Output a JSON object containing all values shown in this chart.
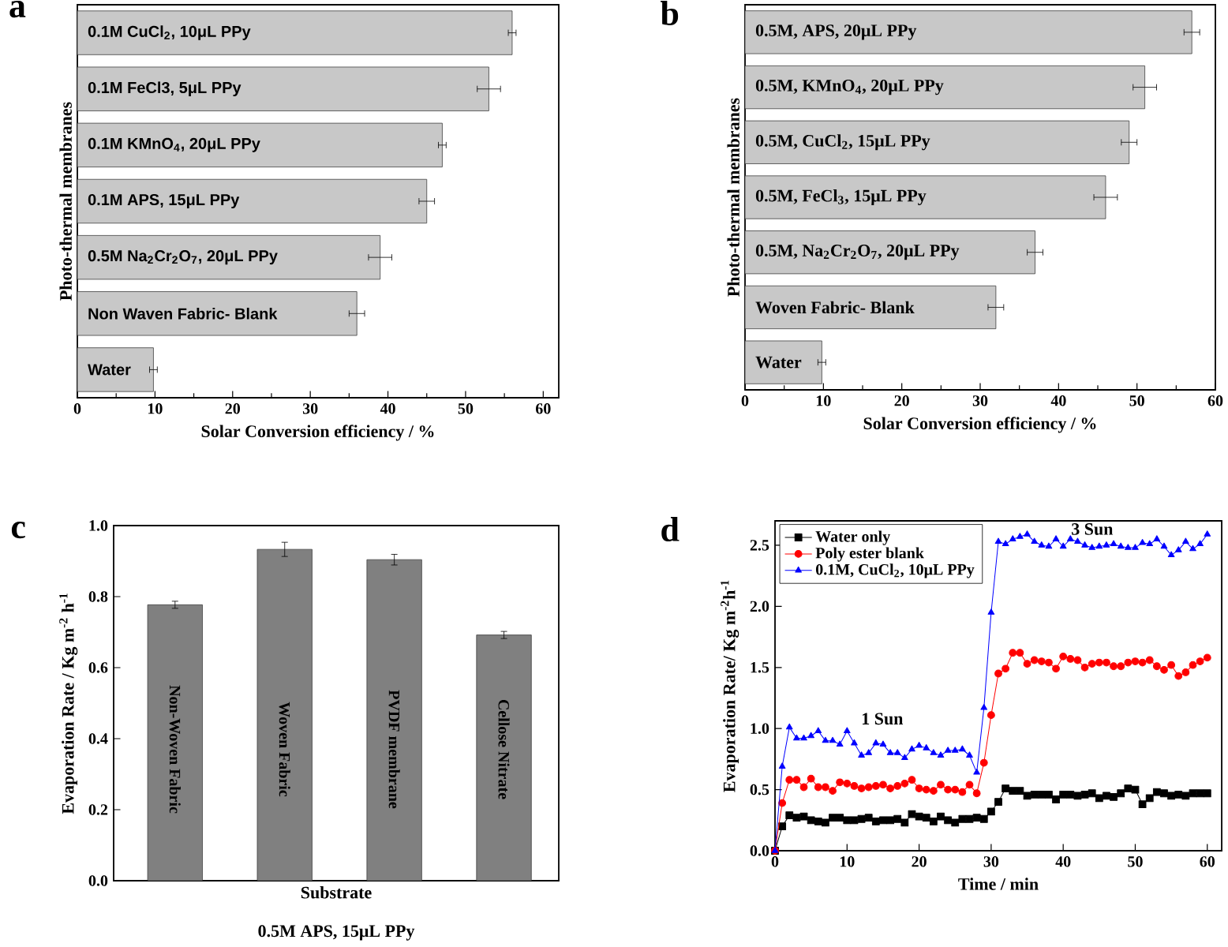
{
  "chart_data": [
    {
      "type": "bar",
      "orientation": "horizontal",
      "title": "a",
      "xlabel": "Solar Conversion efficiency / %",
      "ylabel": "Photo-thermal membranes",
      "categories": [
        "0.1M CuCl$_{2}$, 10μL PPy",
        "0.1M FeCl3, 5μL PPy",
        "0.1M KMnO$_{4}$, 20μL PPy",
        "0.1M APS, 15μL PPy",
        "0.5M Na$_{2}$Cr$_{2}$O$_{7}$, 20μL PPy",
        "Non Waven Fabric- Blank",
        "Water"
      ],
      "values": [
        56,
        53,
        47,
        45,
        39,
        36,
        9.8
      ],
      "errors": [
        0.5,
        1.5,
        0.5,
        1,
        1.5,
        1,
        0.5
      ],
      "color": "#c8c8c8",
      "xlim": [
        0,
        62
      ],
      "xticks": [
        0,
        10,
        20,
        30,
        40,
        50,
        60
      ]
    },
    {
      "type": "bar",
      "orientation": "horizontal",
      "title": "b",
      "xlabel": "Solar Conversion efficiency / %",
      "ylabel": "Photo-thermal membranes",
      "categories": [
        "0.5M, APS, 20μL PPy",
        "0.5M, KMnO$_{4}$, 20μL PPy",
        "0.5M, CuCl$_{2}$, 15μL PPy",
        "0.5M, FeCl$_{3}$, 15μL PPy",
        "0.5M, Na$_{2}$Cr$_{2}$O$_{7}$, 20μL PPy",
        "Woven Fabric- Blank",
        "Water"
      ],
      "values": [
        57,
        51,
        49,
        46,
        37,
        32,
        9.8
      ],
      "errors": [
        1,
        1.5,
        1,
        1.5,
        1,
        1,
        0.5
      ],
      "color": "#c8c8c8",
      "xlim": [
        0,
        60
      ],
      "xticks": [
        0,
        10,
        20,
        30,
        40,
        50,
        60
      ]
    },
    {
      "type": "bar",
      "title": "c",
      "xlabel": "Substrate",
      "ylabel": "Evaporation Rate / Kg m$^{-2}$ h$^{-1}$",
      "annotations": [
        "0.5M APS, 15μL PPy"
      ],
      "categories": [
        "Non-Woven Fabric",
        "Woven Fabric",
        "PVDF membrane",
        "Cellose Nitrate"
      ],
      "values": [
        0.777,
        0.933,
        0.904,
        0.692
      ],
      "errors": [
        0.01,
        0.02,
        0.015,
        0.01
      ],
      "color": "#808080",
      "ylim": [
        0,
        1.0
      ],
      "yticks": [
        {
          "value": 0,
          "label": "0.0"
        },
        0.2,
        0.4,
        0.6,
        0.8,
        {
          "value": 1,
          "label": "1.0"
        }
      ]
    },
    {
      "type": "line",
      "title": "d",
      "xlabel": "Time / min",
      "ylabel": "Evaporation Rate/ Kg m$^{-2}$h$^{-1}$",
      "legend": "top left",
      "annotations": [
        "1 Sun",
        "3 Sun"
      ],
      "x": [
        0,
        1,
        2,
        3,
        4,
        5,
        6,
        7,
        8,
        9,
        10,
        11,
        12,
        13,
        14,
        15,
        16,
        17,
        18,
        19,
        20,
        21,
        22,
        23,
        24,
        25,
        26,
        27,
        28,
        29,
        30,
        31,
        32,
        33,
        34,
        35,
        36,
        37,
        38,
        39,
        40,
        41,
        42,
        43,
        44,
        45,
        46,
        47,
        48,
        49,
        50,
        51,
        52,
        53,
        54,
        55,
        56,
        57,
        58,
        59,
        60
      ],
      "series": [
        {
          "name": "Water only",
          "color": "#000000",
          "marker": "square",
          "values": [
            0,
            0.2,
            0.29,
            0.27,
            0.28,
            0.25,
            0.24,
            0.23,
            0.27,
            0.27,
            0.25,
            0.25,
            0.26,
            0.27,
            0.24,
            0.25,
            0.25,
            0.26,
            0.23,
            0.3,
            0.28,
            0.27,
            0.24,
            0.28,
            0.25,
            0.23,
            0.26,
            0.26,
            0.27,
            0.26,
            0.32,
            0.4,
            0.51,
            0.49,
            0.49,
            0.45,
            0.46,
            0.46,
            0.46,
            0.42,
            0.46,
            0.46,
            0.45,
            0.46,
            0.47,
            0.43,
            0.45,
            0.44,
            0.47,
            0.51,
            0.5,
            0.38,
            0.43,
            0.48,
            0.47,
            0.45,
            0.46,
            0.45,
            0.47,
            0.47,
            0.47
          ]
        },
        {
          "name": "Poly ester blank",
          "color": "#ff0000",
          "marker": "circle",
          "values": [
            0,
            0.39,
            0.58,
            0.58,
            0.52,
            0.59,
            0.52,
            0.52,
            0.49,
            0.56,
            0.55,
            0.53,
            0.51,
            0.52,
            0.53,
            0.54,
            0.51,
            0.53,
            0.55,
            0.58,
            0.51,
            0.5,
            0.49,
            0.54,
            0.5,
            0.5,
            0.48,
            0.54,
            0.47,
            0.72,
            1.11,
            1.45,
            1.49,
            1.62,
            1.62,
            1.53,
            1.56,
            1.55,
            1.54,
            1.49,
            1.59,
            1.57,
            1.56,
            1.5,
            1.53,
            1.54,
            1.54,
            1.51,
            1.51,
            1.54,
            1.55,
            1.54,
            1.56,
            1.51,
            1.48,
            1.52,
            1.43,
            1.46,
            1.52,
            1.55,
            1.58
          ]
        },
        {
          "name": "0.1M, CuCl$_{2}$, 10μL PPy",
          "color": "#0000ff",
          "marker": "triangle",
          "values": [
            0,
            0.69,
            1.01,
            0.92,
            0.92,
            0.94,
            0.98,
            0.9,
            0.9,
            0.87,
            0.98,
            0.88,
            0.78,
            0.8,
            0.88,
            0.87,
            0.8,
            0.8,
            0.76,
            0.83,
            0.86,
            0.84,
            0.8,
            0.78,
            0.82,
            0.82,
            0.83,
            0.78,
            0.64,
            1.17,
            1.95,
            2.53,
            2.51,
            2.55,
            2.57,
            2.59,
            2.53,
            2.5,
            2.49,
            2.55,
            2.49,
            2.55,
            2.53,
            2.5,
            2.48,
            2.49,
            2.5,
            2.51,
            2.49,
            2.48,
            2.48,
            2.52,
            2.51,
            2.55,
            2.49,
            2.42,
            2.46,
            2.53,
            2.47,
            2.51,
            2.59
          ]
        }
      ],
      "xlim": [
        0,
        62
      ],
      "xticks": [
        0,
        10,
        20,
        30,
        40,
        50,
        60
      ],
      "ylim": [
        0,
        2.7
      ],
      "yticks": [
        {
          "value": 0,
          "label": "0.0"
        },
        0.5,
        {
          "value": 1,
          "label": "1.0"
        },
        1.5,
        {
          "value": 2,
          "label": "2.0"
        },
        2.5
      ]
    }
  ]
}
